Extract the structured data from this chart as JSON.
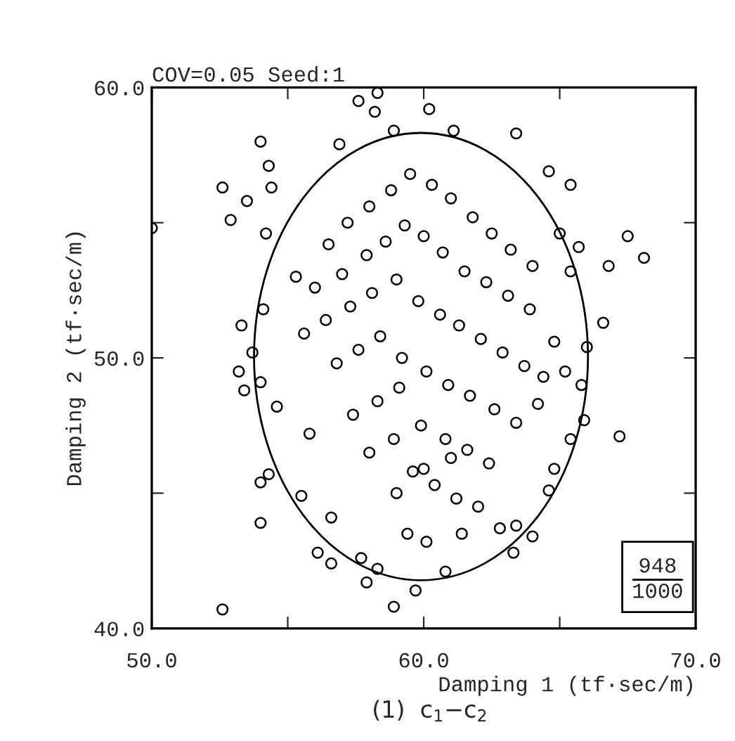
{
  "chart_data": {
    "type": "scatter",
    "title": "COV=0.05 Seed:1",
    "xlabel": "Damping 1 (tf·sec/m)",
    "ylabel": "Damping 2 (tf·sec/m)",
    "xlim": [
      50.0,
      70.0
    ],
    "ylim": [
      40.0,
      60.0
    ],
    "xticks": [
      {
        "value": 50,
        "label": "50.0"
      },
      {
        "value": 55,
        "label": null
      },
      {
        "value": 60,
        "label": "60.0"
      },
      {
        "value": 65,
        "label": null
      },
      {
        "value": 70,
        "label": "70.0"
      }
    ],
    "yticks": [
      {
        "value": 40,
        "label": "40.0"
      },
      {
        "value": 45,
        "label": null
      },
      {
        "value": 50,
        "label": "50.0"
      },
      {
        "value": 55,
        "label": null
      },
      {
        "value": 60,
        "label": "60.0"
      }
    ],
    "grid": false,
    "legend": false,
    "marker": "circle",
    "annotations": [
      "948",
      "1000",
      "(1)  c$_{1}$−c$_{2}$"
    ],
    "series": [
      {
        "color": "#000000",
        "x": [
          57.6,
          58.3,
          58.2,
          60.2,
          54.0,
          54.3,
          52.6,
          53.5,
          54.4,
          52.9,
          54.2,
          50.0,
          63.4,
          64.6,
          65.4,
          65.0,
          65.7,
          67.5,
          68.1,
          66.8,
          65.4,
          66.6,
          66.0,
          54.1,
          53.3,
          53.7,
          53.2,
          61.1,
          58.9,
          56.9,
          53.4,
          54.0,
          54.6,
          54.0,
          54.3,
          54.0,
          52.6,
          58.9,
          59.7,
          57.9,
          60.8,
          58.3,
          63.3,
          64.0,
          61.4,
          60.1,
          59.4,
          56.1,
          56.6,
          57.7,
          67.2,
          65.2,
          65.8,
          65.9,
          65.4,
          64.6,
          64.8,
          63.4,
          62.8,
          55.5,
          56.6,
          56.5,
          57.2,
          58.0,
          58.8,
          59.5,
          60.3,
          61.0,
          61.8,
          62.5,
          63.2,
          64.0,
          56.0,
          57.0,
          57.9,
          58.6,
          59.3,
          60.0,
          60.7,
          61.5,
          62.3,
          63.1,
          63.9,
          55.6,
          56.4,
          57.3,
          58.1,
          59.0,
          59.8,
          60.6,
          61.3,
          62.1,
          62.9,
          63.7,
          64.4,
          56.8,
          57.6,
          58.4,
          59.2,
          60.1,
          60.9,
          61.7,
          62.6,
          63.4,
          57.4,
          58.3,
          59.1,
          59.9,
          60.8,
          61.6,
          62.4,
          58.0,
          58.9,
          59.6,
          60.4,
          61.2,
          62.0,
          59.0,
          60.0,
          61.0,
          55.3,
          64.8,
          55.8,
          64.2
        ],
        "values": [
          59.5,
          59.8,
          59.1,
          59.2,
          58.0,
          57.1,
          56.3,
          55.8,
          56.3,
          55.1,
          54.6,
          54.8,
          58.3,
          56.9,
          56.4,
          54.6,
          54.1,
          54.5,
          53.7,
          53.4,
          53.2,
          51.3,
          50.4,
          51.8,
          51.2,
          50.2,
          49.5,
          58.4,
          58.4,
          57.9,
          48.8,
          49.1,
          48.2,
          45.4,
          45.7,
          43.9,
          40.7,
          40.8,
          41.4,
          41.7,
          42.1,
          42.2,
          42.8,
          43.4,
          43.5,
          43.2,
          43.5,
          42.8,
          42.4,
          42.6,
          47.1,
          49.5,
          49.0,
          47.7,
          47.0,
          45.1,
          45.9,
          43.8,
          43.7,
          44.9,
          44.1,
          54.2,
          55.0,
          55.6,
          56.2,
          56.8,
          56.4,
          55.9,
          55.2,
          54.6,
          54.0,
          53.4,
          52.6,
          53.1,
          53.8,
          54.3,
          54.9,
          54.5,
          53.9,
          53.2,
          52.8,
          52.3,
          51.8,
          50.9,
          51.4,
          51.9,
          52.4,
          52.9,
          52.1,
          51.6,
          51.2,
          50.7,
          50.2,
          49.7,
          49.3,
          49.8,
          50.3,
          50.8,
          50.0,
          49.5,
          49.0,
          48.6,
          48.1,
          47.6,
          47.9,
          48.4,
          48.9,
          47.5,
          47.0,
          46.6,
          46.1,
          46.5,
          47.0,
          45.8,
          45.3,
          44.8,
          44.5,
          45.0,
          45.9,
          46.3,
          53.0,
          50.6,
          47.2,
          48.3
        ]
      }
    ]
  }
}
